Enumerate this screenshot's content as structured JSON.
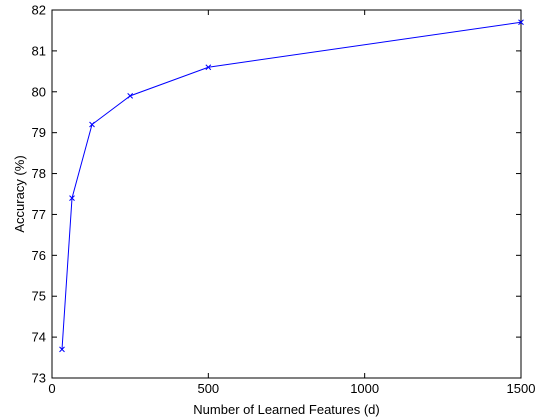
{
  "chart_data": {
    "type": "line",
    "title": "",
    "xlabel": "Number of Learned Features (d)",
    "ylabel": "Accuracy (%)",
    "xlim": [
      0,
      1500
    ],
    "ylim": [
      73,
      82
    ],
    "xticks": [
      0,
      500,
      1000,
      1500
    ],
    "yticks": [
      73,
      74,
      75,
      76,
      77,
      78,
      79,
      80,
      81,
      82
    ],
    "grid": false,
    "legend": "none",
    "series": [
      {
        "color": "#0000ff",
        "marker": "x",
        "x": [
          32,
          64,
          128,
          250,
          500,
          1500
        ],
        "y": [
          73.7,
          77.4,
          79.2,
          79.9,
          80.6,
          81.7
        ]
      }
    ]
  }
}
